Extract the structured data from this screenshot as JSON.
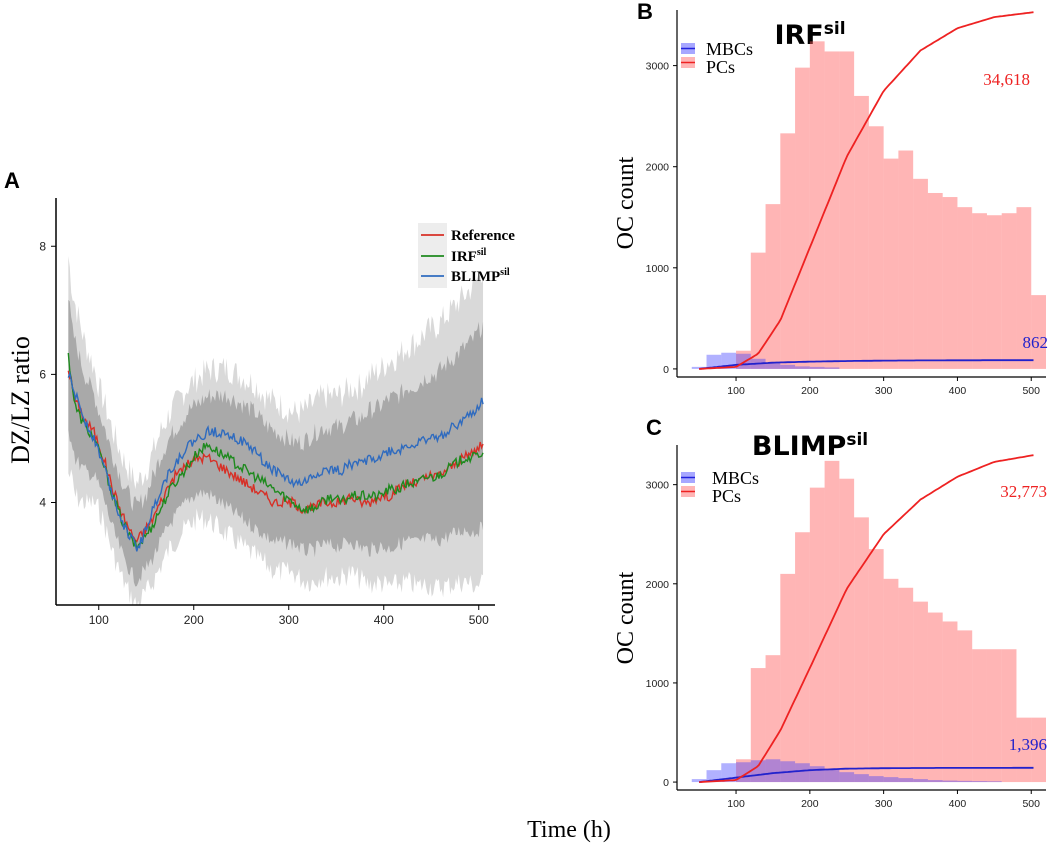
{
  "figure": {
    "xlabel": "Time (h)"
  },
  "chart_data": [
    {
      "panel": "A",
      "type": "line",
      "title": "",
      "xlabel": "",
      "ylabel": "DZ/LZ ratio",
      "xlim": [
        55,
        515
      ],
      "ylim": [
        2.4,
        8.8
      ],
      "xticks": [
        100,
        200,
        300,
        400,
        500
      ],
      "yticks": [
        4,
        6,
        8
      ],
      "legend": "top-right",
      "series": [
        {
          "name": "Reference",
          "sup": "",
          "color": "#d73027",
          "x": [
            68,
            75,
            85,
            95,
            105,
            115,
            125,
            135,
            140,
            145,
            155,
            165,
            175,
            185,
            195,
            205,
            215,
            225,
            235,
            245,
            255,
            265,
            275,
            285,
            295,
            305,
            315,
            325,
            335,
            345,
            355,
            365,
            375,
            385,
            395,
            405,
            415,
            425,
            435,
            445,
            455,
            465,
            475,
            485,
            495,
            505
          ],
          "y": [
            6.1,
            5.6,
            5.3,
            5.1,
            4.7,
            4.2,
            3.8,
            3.5,
            3.4,
            3.5,
            3.7,
            4.0,
            4.3,
            4.5,
            4.6,
            4.7,
            4.7,
            4.6,
            4.5,
            4.4,
            4.3,
            4.2,
            4.1,
            4.0,
            4.0,
            4.0,
            3.9,
            3.9,
            4.0,
            4.0,
            4.0,
            4.1,
            4.0,
            4.0,
            4.1,
            4.1,
            4.2,
            4.3,
            4.3,
            4.4,
            4.4,
            4.5,
            4.6,
            4.7,
            4.8,
            4.9
          ]
        },
        {
          "name": "IRF",
          "sup": "sil",
          "color": "#1e8a1e",
          "x": [
            68,
            75,
            85,
            95,
            105,
            115,
            125,
            135,
            140,
            145,
            155,
            165,
            175,
            185,
            195,
            205,
            215,
            225,
            235,
            245,
            255,
            265,
            275,
            285,
            295,
            305,
            315,
            325,
            335,
            345,
            355,
            365,
            375,
            385,
            395,
            405,
            415,
            425,
            435,
            445,
            455,
            465,
            475,
            485,
            495,
            505
          ],
          "y": [
            6.3,
            5.5,
            5.2,
            5.0,
            4.6,
            4.1,
            3.7,
            3.4,
            3.3,
            3.4,
            3.6,
            3.9,
            4.2,
            4.4,
            4.6,
            4.8,
            4.9,
            4.8,
            4.7,
            4.6,
            4.5,
            4.4,
            4.3,
            4.2,
            4.1,
            4.0,
            3.9,
            3.9,
            4.0,
            4.1,
            4.0,
            4.1,
            4.1,
            4.1,
            4.1,
            4.2,
            4.2,
            4.3,
            4.3,
            4.4,
            4.4,
            4.5,
            4.6,
            4.7,
            4.7,
            4.8
          ]
        },
        {
          "name": "BLIMP",
          "sup": "sil",
          "color": "#2f6bbf",
          "x": [
            68,
            75,
            85,
            95,
            105,
            115,
            125,
            135,
            140,
            145,
            155,
            165,
            175,
            185,
            195,
            205,
            215,
            225,
            235,
            245,
            255,
            265,
            275,
            285,
            295,
            305,
            315,
            325,
            335,
            345,
            355,
            365,
            375,
            385,
            395,
            405,
            415,
            425,
            435,
            445,
            455,
            465,
            475,
            485,
            495,
            505
          ],
          "y": [
            6.0,
            5.7,
            5.3,
            5.0,
            4.6,
            4.1,
            3.7,
            3.4,
            3.3,
            3.4,
            3.8,
            4.2,
            4.5,
            4.7,
            4.9,
            5.0,
            5.1,
            5.1,
            5.1,
            5.0,
            4.9,
            4.8,
            4.6,
            4.5,
            4.4,
            4.3,
            4.3,
            4.4,
            4.5,
            4.5,
            4.5,
            4.6,
            4.6,
            4.7,
            4.7,
            4.8,
            4.8,
            4.9,
            4.9,
            5.0,
            5.0,
            5.1,
            5.2,
            5.3,
            5.4,
            5.6
          ]
        }
      ]
    },
    {
      "panel": "B",
      "type": "bar",
      "title": "IRF",
      "title_sup": "sil",
      "xlabel": "",
      "ylabel": "OC count",
      "xlim": [
        20,
        520
      ],
      "ylim": [
        -80,
        3550
      ],
      "xticks": [
        100,
        200,
        300,
        400,
        500
      ],
      "yticks": [
        0,
        1000,
        2000,
        3000
      ],
      "legend": "top-left",
      "series": [
        {
          "name": "MBCs",
          "color": "#3b3bff",
          "bins": [
            [
              40,
              60,
              20
            ],
            [
              60,
              80,
              140
            ],
            [
              80,
              100,
              160
            ],
            [
              100,
              120,
              150
            ],
            [
              120,
              140,
              100
            ],
            [
              140,
              160,
              60
            ],
            [
              160,
              180,
              40
            ],
            [
              180,
              200,
              25
            ],
            [
              200,
              220,
              20
            ],
            [
              220,
              240,
              15
            ]
          ],
          "curve_x": [
            50,
            100,
            150,
            200,
            250,
            300,
            350,
            400,
            450,
            505
          ],
          "curve_y": [
            0,
            40,
            62,
            72,
            78,
            82,
            84,
            85,
            86,
            86
          ],
          "final_label": "862"
        },
        {
          "name": "PCs",
          "color": "#ff5a5a",
          "bins": [
            [
              100,
              120,
              180
            ],
            [
              120,
              140,
              1150
            ],
            [
              140,
              160,
              1630
            ],
            [
              160,
              180,
              2330
            ],
            [
              180,
              200,
              2980
            ],
            [
              200,
              220,
              3240
            ],
            [
              220,
              240,
              3140
            ],
            [
              240,
              260,
              3140
            ],
            [
              260,
              280,
              2700
            ],
            [
              280,
              300,
              2400
            ],
            [
              300,
              320,
              2080
            ],
            [
              320,
              340,
              2160
            ],
            [
              340,
              360,
              1880
            ],
            [
              360,
              380,
              1740
            ],
            [
              380,
              400,
              1700
            ],
            [
              400,
              420,
              1600
            ],
            [
              420,
              440,
              1540
            ],
            [
              440,
              460,
              1520
            ],
            [
              460,
              480,
              1540
            ],
            [
              480,
              500,
              1600
            ],
            [
              500,
              520,
              730
            ]
          ],
          "curve_x": [
            50,
            100,
            130,
            160,
            200,
            250,
            300,
            350,
            400,
            450,
            505
          ],
          "curve_y": [
            0,
            20,
            150,
            480,
            1200,
            2100,
            2750,
            3150,
            3370,
            3480,
            3530
          ],
          "final_label": "34,618"
        }
      ]
    },
    {
      "panel": "C",
      "type": "bar",
      "title": "BLIMP",
      "title_sup": "sil",
      "xlabel": "",
      "ylabel": "OC count",
      "xlim": [
        20,
        520
      ],
      "ylim": [
        -80,
        3400
      ],
      "xticks": [
        100,
        200,
        300,
        400,
        500
      ],
      "yticks": [
        0,
        1000,
        2000,
        3000
      ],
      "legend": "top-left",
      "series": [
        {
          "name": "MBCs",
          "color": "#3b3bff",
          "bins": [
            [
              40,
              60,
              30
            ],
            [
              60,
              80,
              120
            ],
            [
              80,
              100,
              190
            ],
            [
              100,
              120,
              200
            ],
            [
              120,
              140,
              220
            ],
            [
              140,
              160,
              230
            ],
            [
              160,
              180,
              210
            ],
            [
              180,
              200,
              190
            ],
            [
              200,
              220,
              160
            ],
            [
              220,
              240,
              130
            ],
            [
              240,
              260,
              100
            ],
            [
              260,
              280,
              80
            ],
            [
              280,
              300,
              60
            ],
            [
              300,
              320,
              50
            ],
            [
              320,
              340,
              40
            ],
            [
              340,
              360,
              30
            ],
            [
              360,
              380,
              20
            ],
            [
              380,
              400,
              15
            ],
            [
              400,
              420,
              12
            ],
            [
              420,
              440,
              10
            ],
            [
              440,
              460,
              8
            ]
          ],
          "curve_x": [
            50,
            100,
            150,
            200,
            250,
            300,
            350,
            400,
            450,
            505
          ],
          "curve_y": [
            0,
            45,
            90,
            120,
            135,
            140,
            142,
            143,
            143,
            144
          ],
          "final_label": "1,396"
        },
        {
          "name": "PCs",
          "color": "#ff5a5a",
          "bins": [
            [
              100,
              120,
              230
            ],
            [
              120,
              140,
              1150
            ],
            [
              140,
              160,
              1280
            ],
            [
              160,
              180,
              2100
            ],
            [
              180,
              200,
              2520
            ],
            [
              200,
              220,
              2970
            ],
            [
              220,
              240,
              3240
            ],
            [
              240,
              260,
              3060
            ],
            [
              260,
              280,
              2670
            ],
            [
              280,
              300,
              2350
            ],
            [
              300,
              320,
              2050
            ],
            [
              320,
              340,
              1960
            ],
            [
              340,
              360,
              1820
            ],
            [
              360,
              380,
              1710
            ],
            [
              380,
              400,
              1620
            ],
            [
              400,
              420,
              1530
            ],
            [
              420,
              440,
              1340
            ],
            [
              440,
              460,
              1340
            ],
            [
              460,
              480,
              1340
            ],
            [
              480,
              500,
              650
            ],
            [
              500,
              520,
              650
            ]
          ],
          "curve_x": [
            50,
            100,
            130,
            160,
            200,
            250,
            300,
            350,
            400,
            450,
            505
          ],
          "curve_y": [
            0,
            20,
            160,
            520,
            1150,
            1950,
            2500,
            2850,
            3080,
            3230,
            3300
          ],
          "final_label": "32,773"
        }
      ]
    }
  ]
}
